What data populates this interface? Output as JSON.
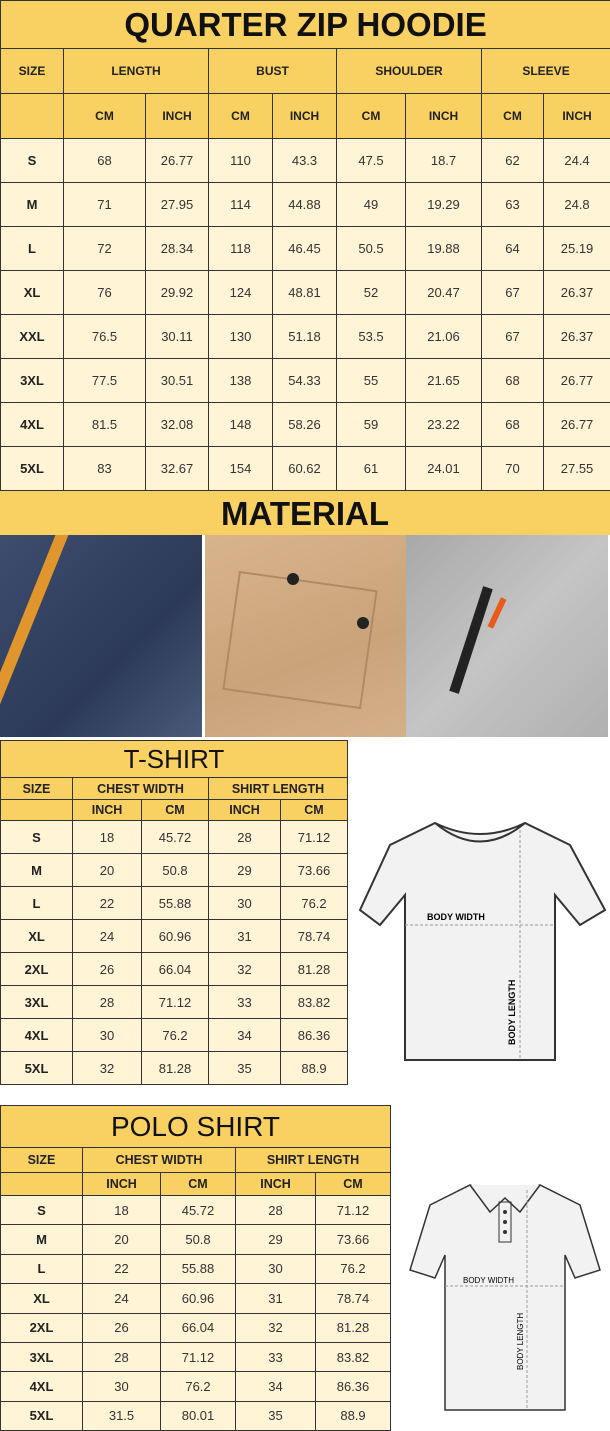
{
  "hoodie": {
    "title": "QUARTER ZIP HOODIE",
    "headers": [
      "SIZE",
      "LENGTH",
      "BUST",
      "SHOULDER",
      "SLEEVE"
    ],
    "units": [
      "CM",
      "INCH",
      "CM",
      "INCH",
      "CM",
      "INCH",
      "CM",
      "INCH"
    ],
    "rows": [
      [
        "S",
        "68",
        "26.77",
        "110",
        "43.3",
        "47.5",
        "18.7",
        "62",
        "24.4"
      ],
      [
        "M",
        "71",
        "27.95",
        "114",
        "44.88",
        "49",
        "19.29",
        "63",
        "24.8"
      ],
      [
        "L",
        "72",
        "28.34",
        "118",
        "46.45",
        "50.5",
        "19.88",
        "64",
        "25.19"
      ],
      [
        "XL",
        "76",
        "29.92",
        "124",
        "48.81",
        "52",
        "20.47",
        "67",
        "26.37"
      ],
      [
        "XXL",
        "76.5",
        "30.11",
        "130",
        "51.18",
        "53.5",
        "21.06",
        "67",
        "26.37"
      ],
      [
        "3XL",
        "77.5",
        "30.51",
        "138",
        "54.33",
        "55",
        "21.65",
        "68",
        "26.77"
      ],
      [
        "4XL",
        "81.5",
        "32.08",
        "148",
        "58.26",
        "59",
        "23.22",
        "68",
        "26.77"
      ],
      [
        "5XL",
        "83",
        "32.67",
        "154",
        "60.62",
        "61",
        "24.01",
        "70",
        "27.55"
      ]
    ]
  },
  "material": {
    "title": "MATERIAL"
  },
  "tshirt": {
    "title": "T-SHIRT",
    "headers": [
      "SIZE",
      "CHEST WIDTH",
      "SHIRT LENGTH"
    ],
    "units": [
      "INCH",
      "CM",
      "INCH",
      "CM"
    ],
    "rows": [
      [
        "S",
        "18",
        "45.72",
        "28",
        "71.12"
      ],
      [
        "M",
        "20",
        "50.8",
        "29",
        "73.66"
      ],
      [
        "L",
        "22",
        "55.88",
        "30",
        "76.2"
      ],
      [
        "XL",
        "24",
        "60.96",
        "31",
        "78.74"
      ],
      [
        "2XL",
        "26",
        "66.04",
        "32",
        "81.28"
      ],
      [
        "3XL",
        "28",
        "71.12",
        "33",
        "83.82"
      ],
      [
        "4XL",
        "30",
        "76.2",
        "34",
        "86.36"
      ],
      [
        "5XL",
        "32",
        "81.28",
        "35",
        "88.9"
      ]
    ],
    "diagram": {
      "body_width": "BODY WIDTH",
      "body_length": "BODY LENGTH"
    }
  },
  "polo": {
    "title": "POLO SHIRT",
    "headers": [
      "SIZE",
      "CHEST WIDTH",
      "SHIRT LENGTH"
    ],
    "units": [
      "INCH",
      "CM",
      "INCH",
      "CM"
    ],
    "rows": [
      [
        "S",
        "18",
        "45.72",
        "28",
        "71.12"
      ],
      [
        "M",
        "20",
        "50.8",
        "29",
        "73.66"
      ],
      [
        "L",
        "22",
        "55.88",
        "30",
        "76.2"
      ],
      [
        "XL",
        "24",
        "60.96",
        "31",
        "78.74"
      ],
      [
        "2XL",
        "26",
        "66.04",
        "32",
        "81.28"
      ],
      [
        "3XL",
        "28",
        "71.12",
        "33",
        "83.82"
      ],
      [
        "4XL",
        "30",
        "76.2",
        "34",
        "86.36"
      ],
      [
        "5XL",
        "31.5",
        "80.01",
        "35",
        "88.9"
      ]
    ],
    "diagram": {
      "body_width": "BODY WIDTH",
      "body_length": "BODY LENGTH"
    }
  },
  "colors": {
    "header": "#f9d062",
    "body": "#fff4d6"
  }
}
